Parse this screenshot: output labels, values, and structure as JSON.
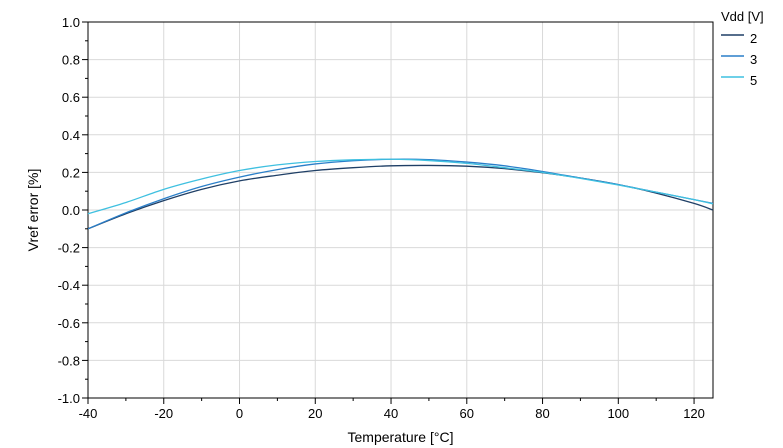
{
  "chart_data": {
    "type": "line",
    "xlabel": "Temperature [°C]",
    "ylabel": "Vref error [%]",
    "xlim": [
      -40,
      125
    ],
    "ylim": [
      -1.0,
      1.0
    ],
    "xticks": [
      -40,
      -20,
      0,
      20,
      40,
      60,
      80,
      100,
      120
    ],
    "yticks": [
      -1.0,
      -0.8,
      -0.6,
      -0.4,
      -0.2,
      0.0,
      0.2,
      0.4,
      0.6,
      0.8,
      1.0
    ],
    "ytick_labels": [
      "-1.0",
      "-0.8",
      "-0.6",
      "-0.4",
      "-0.2",
      "0.0",
      "0.2",
      "0.4",
      "0.6",
      "0.8",
      "1.0"
    ],
    "grid": true,
    "legend": {
      "title": "Vdd [V]",
      "position": "right-top"
    },
    "x": [
      -40,
      -30,
      -20,
      -10,
      0,
      10,
      20,
      30,
      40,
      50,
      60,
      70,
      80,
      90,
      100,
      110,
      120,
      125
    ],
    "series": [
      {
        "name": "2",
        "color": "#1f3f66",
        "values": [
          -0.1,
          -0.02,
          0.05,
          0.11,
          0.155,
          0.185,
          0.21,
          0.225,
          0.235,
          0.237,
          0.233,
          0.22,
          0.198,
          0.17,
          0.135,
          0.09,
          0.035,
          0.0
        ]
      },
      {
        "name": "3",
        "color": "#2a7fc9",
        "values": [
          -0.1,
          -0.015,
          0.06,
          0.125,
          0.175,
          0.215,
          0.245,
          0.262,
          0.27,
          0.268,
          0.255,
          0.235,
          0.205,
          0.17,
          0.135,
          0.095,
          0.055,
          0.035
        ]
      },
      {
        "name": "5",
        "color": "#3fc0e0",
        "values": [
          -0.02,
          0.04,
          0.11,
          0.165,
          0.21,
          0.24,
          0.258,
          0.267,
          0.27,
          0.263,
          0.248,
          0.225,
          0.2,
          0.168,
          0.133,
          0.095,
          0.055,
          0.033
        ]
      }
    ]
  }
}
